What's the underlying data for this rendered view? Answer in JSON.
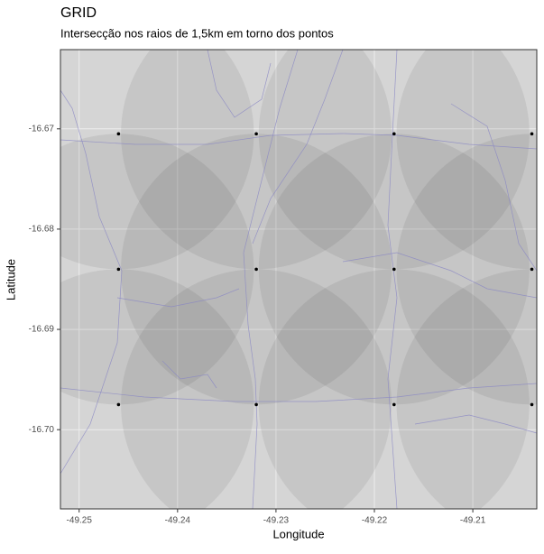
{
  "chart_data": {
    "type": "scatter",
    "title": "GRID",
    "subtitle": "Intersecção nos raios de 1,5km em torno dos pontos",
    "x_label": "Longitude",
    "y_label": "Latitude",
    "x": [
      -49.246,
      -49.232,
      -49.218,
      -49.204,
      -49.246,
      -49.232,
      -49.218,
      -49.204,
      -49.246,
      -49.232,
      -49.218,
      -49.204
    ],
    "y": [
      -16.6705,
      -16.6705,
      -16.6705,
      -16.6705,
      -16.684,
      -16.684,
      -16.684,
      -16.684,
      -16.6975,
      -16.6975,
      -16.6975,
      -16.6975
    ],
    "color": "#000000",
    "xlim": [
      -49.2519,
      -49.2035
    ],
    "ylim": [
      -16.7079,
      -16.6621
    ],
    "xticks": [
      -49.25,
      -49.24,
      -49.23,
      -49.22,
      -49.21
    ],
    "yticks": [
      -16.67,
      -16.68,
      -16.69,
      {
        "value": -16.7,
        "label": "-16.70"
      }
    ],
    "grid": true
  }
}
